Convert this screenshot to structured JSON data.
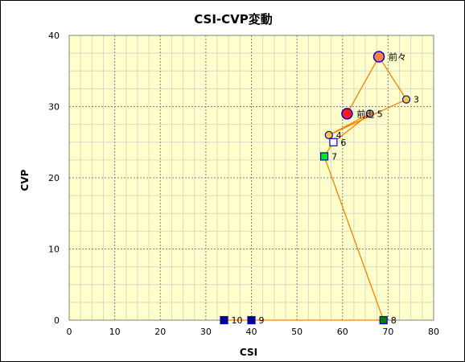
{
  "chart_data": {
    "type": "scatter",
    "title": "CSI-CVP変動",
    "xlabel": "CSI",
    "ylabel": "CVP",
    "xlim": [
      0,
      80
    ],
    "ylim": [
      0,
      40
    ],
    "x_ticks": [
      "0",
      "10",
      "20",
      "30",
      "40",
      "50",
      "60",
      "70",
      "80"
    ],
    "y_ticks": [
      "0",
      "10",
      "20",
      "30",
      "40"
    ],
    "grid": true,
    "legend": "none",
    "path": [
      {
        "label": "前走",
        "x": 61,
        "y": 29,
        "marker": "circle-large",
        "fill": "#ff1a1a"
      },
      {
        "label": "前々",
        "x": 68,
        "y": 37,
        "marker": "circle-large",
        "fill": "#ff8040"
      },
      {
        "label": "3",
        "x": 74,
        "y": 31,
        "marker": "circle",
        "fill": "#ffcc33"
      },
      {
        "label": "4",
        "x": 57,
        "y": 26,
        "marker": "circle",
        "fill": "#ffcc33"
      },
      {
        "label": "5",
        "x": 66,
        "y": 29,
        "marker": "circle",
        "fill": "#ffcc33"
      },
      {
        "label": "6",
        "x": 58,
        "y": 25,
        "marker": "square",
        "fill": "#ffffff"
      },
      {
        "label": "7",
        "x": 56,
        "y": 23,
        "marker": "square",
        "fill": "#00ee00"
      },
      {
        "label": "8",
        "x": 69,
        "y": 0,
        "marker": "square",
        "fill": "#008000"
      },
      {
        "label": "9",
        "x": 40,
        "y": 0,
        "marker": "square",
        "fill": "#000080"
      },
      {
        "label": "10",
        "x": 34,
        "y": 0,
        "marker": "square",
        "fill": "#000080"
      }
    ]
  },
  "colors": {
    "plot_bg": "#ffffcc",
    "line": "#ff8000",
    "marker_edge": "#0000cc",
    "grid_major": "#808080",
    "grid_minor": "#d8d8c8"
  }
}
